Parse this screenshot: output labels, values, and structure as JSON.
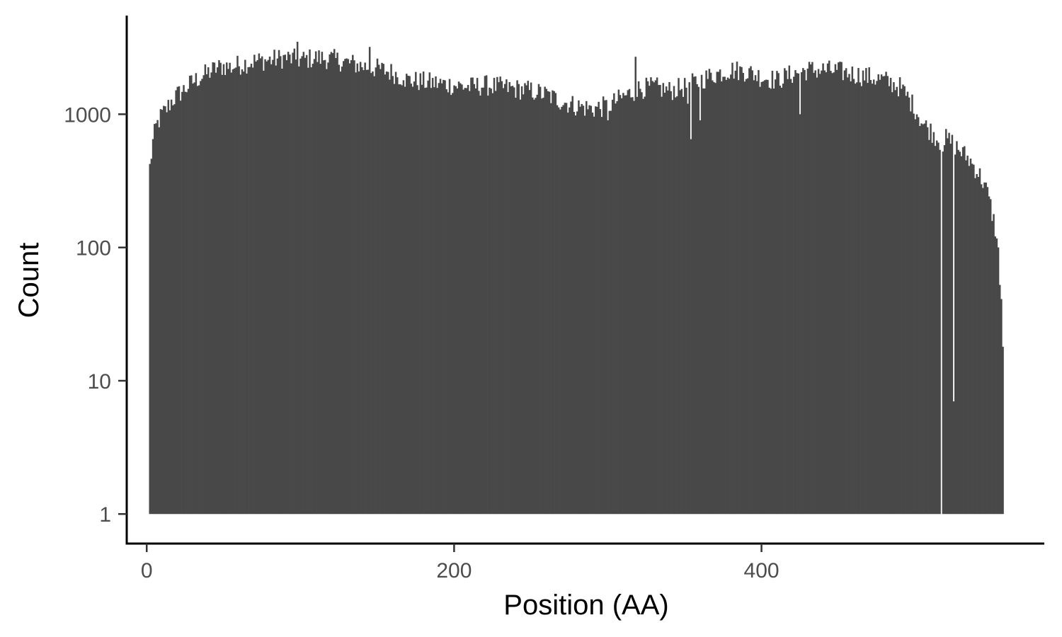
{
  "chart_data": {
    "type": "bar",
    "title": "",
    "xlabel": "Position (AA)",
    "ylabel": "Count",
    "x_scale": "linear",
    "y_scale": "log10",
    "xlim": [
      -13,
      584
    ],
    "ylim": [
      0.6,
      5500
    ],
    "x_ticks": [
      0,
      200,
      400
    ],
    "y_ticks": [
      1,
      10,
      100,
      1000
    ],
    "y_tick_labels": [
      "1",
      "10",
      "100",
      "1000"
    ],
    "x_tick_labels": [
      "0",
      "200",
      "400"
    ],
    "bar_color": "#484848",
    "grid": false,
    "legend": "none",
    "bin_width": 1,
    "profile_points": [
      [
        2,
        400
      ],
      [
        4,
        620
      ],
      [
        6,
        800
      ],
      [
        8,
        900
      ],
      [
        10,
        1000
      ],
      [
        12,
        1050
      ],
      [
        14,
        1150
      ],
      [
        16,
        1250
      ],
      [
        20,
        1400
      ],
      [
        25,
        1550
      ],
      [
        30,
        1750
      ],
      [
        35,
        1900
      ],
      [
        40,
        2050
      ],
      [
        45,
        2200
      ],
      [
        50,
        2300
      ],
      [
        55,
        2250
      ],
      [
        60,
        2350
      ],
      [
        70,
        2500
      ],
      [
        80,
        2550
      ],
      [
        90,
        2650
      ],
      [
        100,
        2550
      ],
      [
        110,
        2650
      ],
      [
        120,
        2600
      ],
      [
        130,
        2450
      ],
      [
        140,
        2300
      ],
      [
        150,
        2200
      ],
      [
        160,
        2050
      ],
      [
        170,
        1800
      ],
      [
        180,
        1750
      ],
      [
        190,
        1700
      ],
      [
        200,
        1650
      ],
      [
        210,
        1600
      ],
      [
        220,
        1650
      ],
      [
        230,
        1600
      ],
      [
        240,
        1550
      ],
      [
        250,
        1500
      ],
      [
        260,
        1400
      ],
      [
        270,
        1250
      ],
      [
        280,
        1150
      ],
      [
        290,
        1100
      ],
      [
        300,
        1150
      ],
      [
        310,
        1350
      ],
      [
        320,
        1550
      ],
      [
        330,
        1600
      ],
      [
        340,
        1500
      ],
      [
        350,
        1600
      ],
      [
        360,
        1800
      ],
      [
        370,
        2000
      ],
      [
        380,
        2150
      ],
      [
        390,
        2100
      ],
      [
        400,
        1900
      ],
      [
        410,
        1800
      ],
      [
        420,
        2000
      ],
      [
        430,
        2150
      ],
      [
        440,
        2150
      ],
      [
        450,
        2100
      ],
      [
        460,
        2000
      ],
      [
        470,
        1900
      ],
      [
        480,
        1800
      ],
      [
        490,
        1600
      ],
      [
        495,
        1350
      ],
      [
        500,
        1100
      ],
      [
        505,
        850
      ],
      [
        510,
        750
      ],
      [
        515,
        650
      ],
      [
        518,
        600
      ],
      [
        520,
        650
      ],
      [
        525,
        600
      ],
      [
        530,
        520
      ],
      [
        535,
        460
      ],
      [
        540,
        380
      ],
      [
        545,
        300
      ],
      [
        548,
        230
      ],
      [
        550,
        180
      ],
      [
        552,
        140
      ],
      [
        553,
        110
      ],
      [
        554,
        90
      ],
      [
        555,
        60
      ],
      [
        556,
        40
      ],
      [
        557,
        18
      ]
    ],
    "outliers": [
      [
        98,
        3500
      ],
      [
        145,
        3200
      ],
      [
        167,
        1800
      ],
      [
        254,
        1400
      ],
      [
        300,
        900
      ],
      [
        318,
        2700
      ],
      [
        352,
        1200
      ],
      [
        354,
        650
      ],
      [
        360,
        900
      ],
      [
        425,
        1000
      ],
      [
        517,
        1
      ],
      [
        525,
        7
      ],
      [
        557,
        18
      ]
    ]
  }
}
